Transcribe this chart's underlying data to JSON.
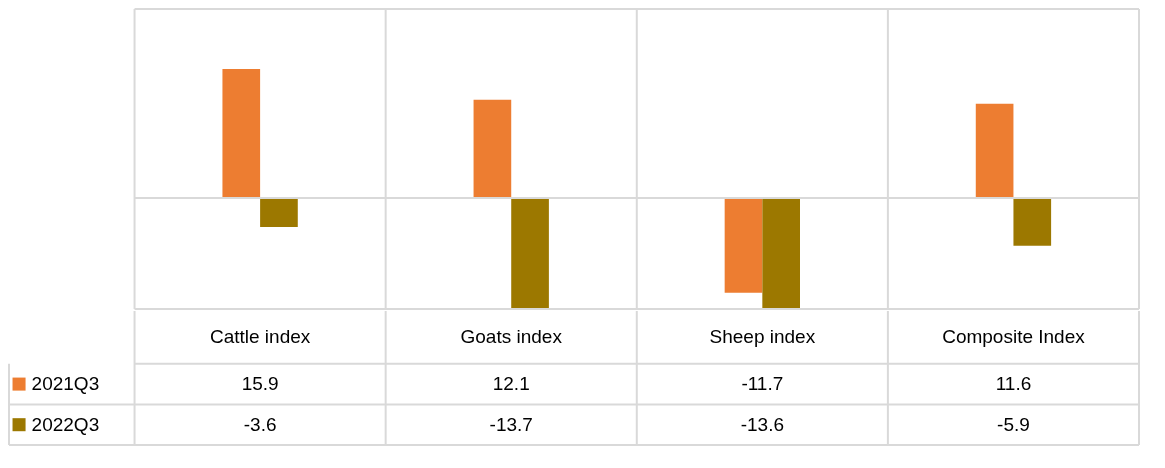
{
  "chart_data": {
    "type": "bar",
    "categories": [
      "Cattle index",
      "Goats index",
      "Sheep index",
      "Composite Index"
    ],
    "series": [
      {
        "name": "2021Q3",
        "color": "#ed7d31",
        "values": [
          15.9,
          12.1,
          -11.7,
          11.6
        ]
      },
      {
        "name": "2022Q3",
        "color": "#9c7800",
        "values": [
          -3.6,
          -13.7,
          -13.6,
          -5.9
        ]
      }
    ],
    "data_labels": true,
    "legend": "bottom"
  }
}
